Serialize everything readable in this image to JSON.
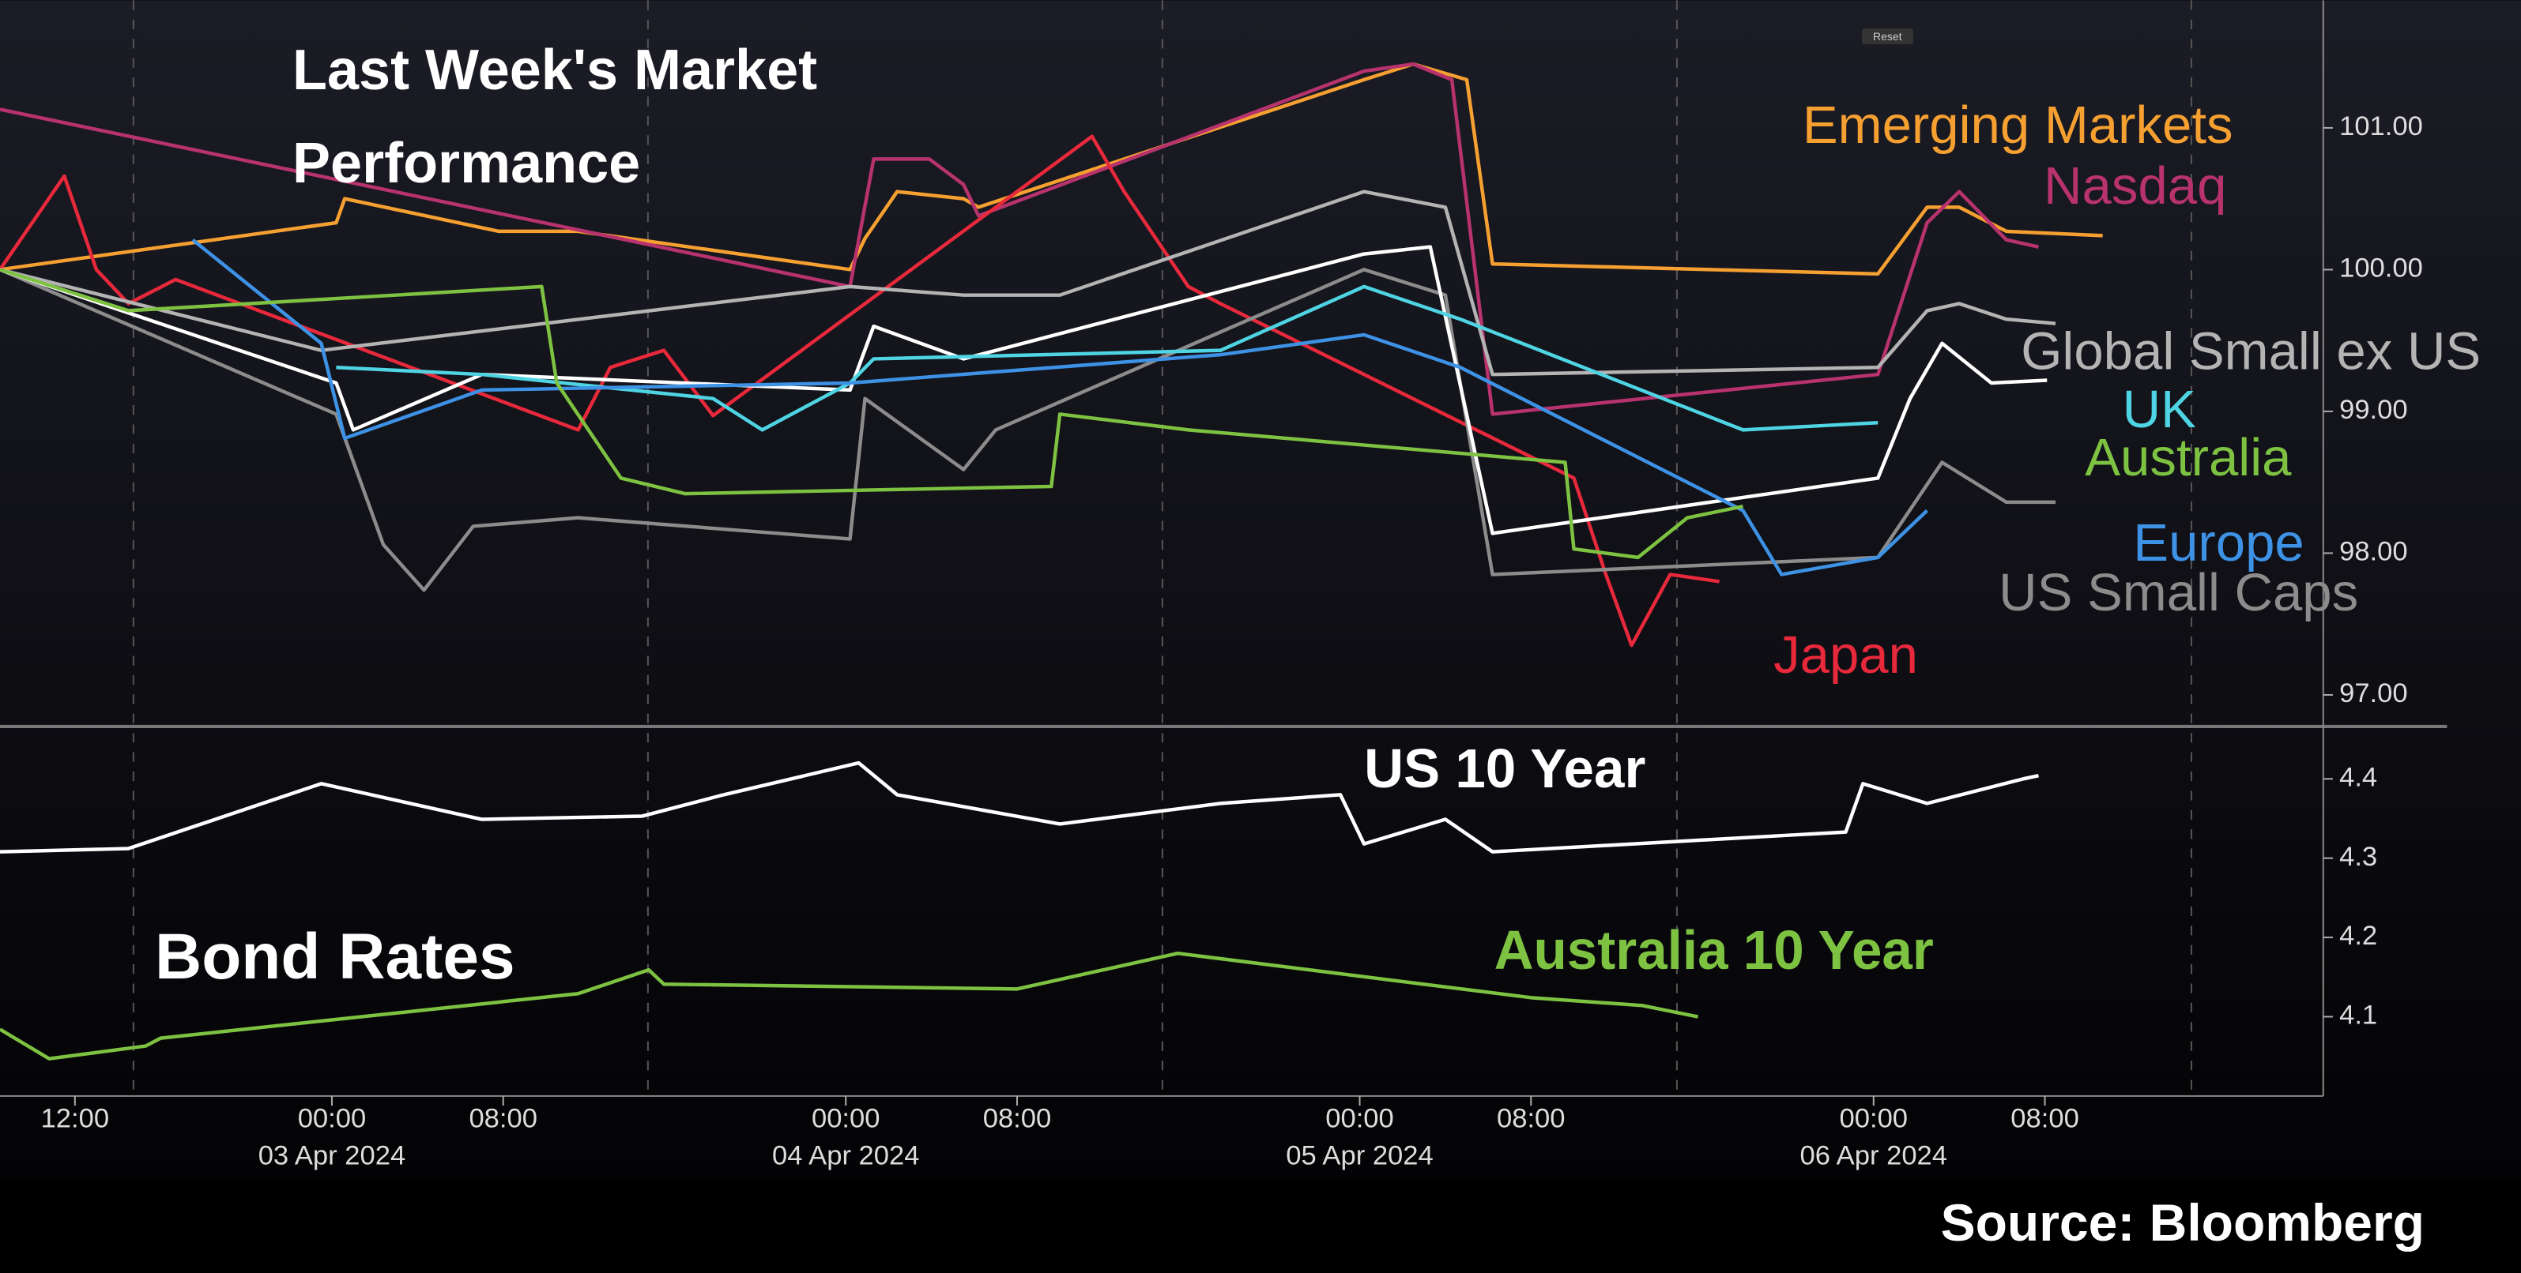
{
  "source": "Source: Bloomberg",
  "toolbar": {
    "button": "Reset"
  },
  "chart_data": [
    {
      "type": "line",
      "title": "Last Week's Market Performance",
      "xlim": [
        8.5,
        117
      ],
      "ylim": [
        96.8,
        101.9
      ],
      "yticks": [
        {
          "value": 97,
          "label": "97.00"
        },
        {
          "value": 98,
          "label": "98.00"
        },
        {
          "value": 99,
          "label": "99.00"
        },
        {
          "value": 100,
          "label": "100.00"
        },
        {
          "value": 101,
          "label": "101.00"
        }
      ],
      "series": [
        {
          "name": "Emerging Markets",
          "color": "#f5a031",
          "x": [
            8.5,
            24.2,
            24.6,
            31.8,
            35.5,
            48.2,
            48.9,
            50.4,
            53.5,
            54.2,
            72.2,
            74.5,
            77,
            78.2,
            96.2,
            98.5,
            100,
            102.2,
            106.7
          ],
          "values": [
            100,
            100.33,
            100.5,
            100.27,
            100.27,
            100,
            100.22,
            100.55,
            100.5,
            100.44,
            101.34,
            101.45,
            101.34,
            100.04,
            99.97,
            100.44,
            100.44,
            100.27,
            100.24
          ]
        },
        {
          "name": "Nasdaq",
          "color": "#b8336e",
          "x": [
            8.5,
            48.2,
            49.3,
            51.9,
            53.5,
            54.2,
            72.2,
            74.5,
            76.3,
            78.2,
            96.2,
            98.5,
            100,
            102.2,
            103.7
          ],
          "values": [
            101.13,
            99.88,
            100.78,
            100.78,
            100.6,
            100.38,
            101.4,
            101.45,
            101.34,
            98.98,
            99.26,
            100.33,
            100.55,
            100.21,
            100.16
          ]
        },
        {
          "name": "Japan",
          "color": "#e8293b",
          "x": [
            8.5,
            11.5,
            13,
            14.5,
            16.7,
            35.5,
            37,
            39.5,
            41.8,
            59.5,
            61,
            64,
            65.5,
            82,
            83.5,
            84.7,
            86.5,
            88.8
          ],
          "values": [
            100,
            100.66,
            100,
            99.76,
            99.93,
            98.87,
            99.31,
            99.43,
            98.97,
            100.94,
            100.55,
            99.88,
            99.76,
            98.53,
            97.85,
            97.35,
            97.85,
            97.8
          ]
        },
        {
          "name": "Global Small ex US",
          "color": "#b4b4b4",
          "x": [
            8.5,
            23.5,
            48.2,
            53.5,
            58,
            72.2,
            76,
            78.2,
            96.2,
            98.5,
            100,
            102.2,
            104.5
          ],
          "values": [
            100,
            99.43,
            99.88,
            99.82,
            99.82,
            100.55,
            100.44,
            99.26,
            99.31,
            99.71,
            99.76,
            99.65,
            99.62
          ]
        },
        {
          "name": "US Small Caps",
          "color": "#8c8c8c",
          "x": [
            8.5,
            24.2,
            26.4,
            28.3,
            30.6,
            35.5,
            48.2,
            48.9,
            53.5,
            55,
            72.2,
            76,
            78.2,
            96.2,
            99.2,
            102.2,
            104.5
          ],
          "values": [
            100,
            98.98,
            98.06,
            97.74,
            98.19,
            98.25,
            98.1,
            99.09,
            98.59,
            98.87,
            100,
            99.82,
            97.85,
            97.97,
            98.64,
            98.36,
            98.36
          ]
        },
        {
          "color": "#ffffff",
          "x": [
            8.5,
            24.2,
            25,
            31,
            48.2,
            49.3,
            53.5,
            72.2,
            75.3,
            78.2,
            96.2,
            97.7,
            99.2,
            101.5,
            104.1
          ],
          "values": [
            100,
            99.2,
            98.87,
            99.26,
            99.15,
            99.6,
            99.37,
            100.11,
            100.16,
            98.14,
            98.53,
            99.09,
            99.48,
            99.2,
            99.22
          ]
        },
        {
          "name": "UK",
          "color": "#4fd4e4",
          "x": [
            24.2,
            31,
            41.8,
            44.1,
            48.2,
            49.3,
            65.5,
            72.2,
            76.7,
            89.9,
            96.2
          ],
          "values": [
            99.31,
            99.26,
            99.09,
            98.87,
            99.2,
            99.37,
            99.43,
            99.88,
            99.65,
            98.87,
            98.92
          ]
        },
        {
          "name": "Europe",
          "color": "#3d92e6",
          "x": [
            17.5,
            23.5,
            24.6,
            31,
            48.2,
            65.5,
            72.2,
            76.7,
            89.9,
            91.7,
            96.2,
            98.5
          ],
          "values": [
            100.21,
            99.48,
            98.81,
            99.15,
            99.2,
            99.4,
            99.54,
            99.31,
            98.3,
            97.85,
            97.97,
            98.3
          ]
        },
        {
          "name": "Australia",
          "color": "#7ec242",
          "x": [
            8.5,
            14.5,
            33.8,
            34.5,
            37.5,
            40.5,
            57.6,
            58,
            64,
            81.6,
            82,
            85,
            87.3,
            89.9
          ],
          "values": [
            100,
            99.71,
            99.88,
            99.2,
            98.53,
            98.42,
            98.47,
            98.98,
            98.87,
            98.64,
            98.03,
            97.97,
            98.25,
            98.33
          ]
        }
      ]
    },
    {
      "type": "line",
      "title": "Bond Rates",
      "xlim": [
        8.5,
        117
      ],
      "ylim": [
        4.0,
        4.46
      ],
      "yticks": [
        4.1,
        4.2,
        4.3,
        4.4
      ],
      "xticks": [
        {
          "value": 12,
          "label": "12:00"
        },
        {
          "value": 24,
          "label": "00:00"
        },
        {
          "value": 32,
          "label": "08:00"
        },
        {
          "value": 48,
          "label": "00:00"
        },
        {
          "value": 56,
          "label": "08:00"
        },
        {
          "value": 72,
          "label": "00:00"
        },
        {
          "value": 80,
          "label": "08:00"
        },
        {
          "value": 96,
          "label": "00:00"
        },
        {
          "value": 104,
          "label": "08:00"
        }
      ],
      "xdates": [
        {
          "value": 24,
          "label": "03 Apr 2024"
        },
        {
          "value": 48,
          "label": "04 Apr 2024"
        },
        {
          "value": 72,
          "label": "05 Apr 2024"
        },
        {
          "value": 96,
          "label": "06 Apr 2024"
        }
      ],
      "series": [
        {
          "name": "US 10 Year",
          "color": "#ffffff",
          "x": [
            8.5,
            14.5,
            23.5,
            31,
            38.5,
            42.3,
            48.6,
            50.4,
            58,
            65.5,
            71.1,
            72.2,
            76,
            78.2,
            94.7,
            95.5,
            98.5,
            103,
            103.7
          ],
          "values": [
            4.308,
            4.312,
            4.394,
            4.349,
            4.353,
            4.38,
            4.42,
            4.38,
            4.343,
            4.369,
            4.38,
            4.318,
            4.349,
            4.308,
            4.333,
            4.394,
            4.369,
            4.4,
            4.404
          ]
        },
        {
          "name": "Australia 10 Year",
          "color": "#7ec242",
          "x": [
            8.5,
            10.8,
            15.3,
            16,
            35.5,
            38.8,
            39.5,
            56,
            63.5,
            80,
            85.2,
            87.8
          ],
          "values": [
            4.084,
            4.047,
            4.063,
            4.073,
            4.129,
            4.159,
            4.141,
            4.135,
            4.18,
            4.124,
            4.114,
            4.1
          ]
        }
      ]
    }
  ]
}
